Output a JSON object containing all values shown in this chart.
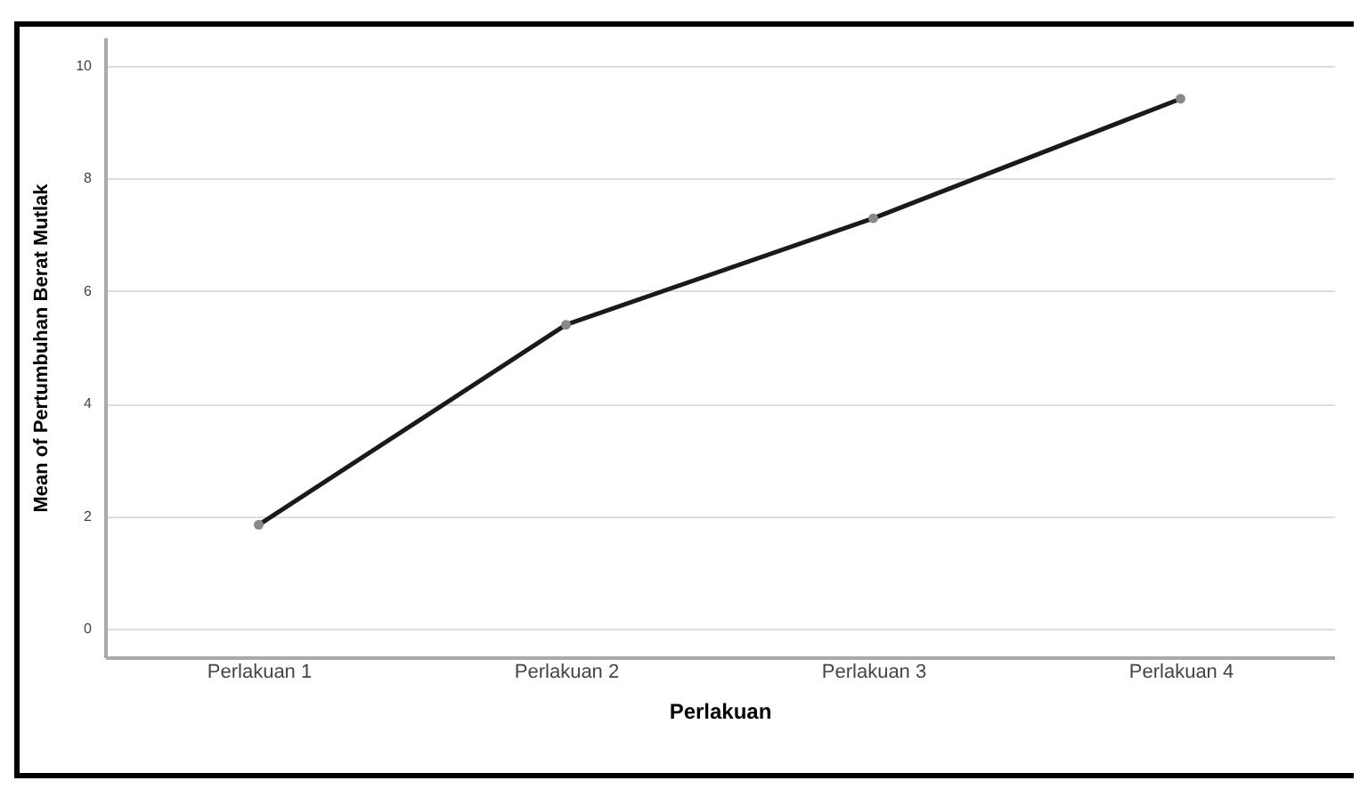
{
  "chart_data": {
    "type": "line",
    "xlabel": "Perlakuan",
    "ylabel": "Mean of Pertumbuhan Berat Mutlak",
    "categories": [
      "Perlakuan 1",
      "Perlakuan 2",
      "Perlakuan 3",
      "Perlakuan 4"
    ],
    "series": [
      {
        "color": "#1a1a1a",
        "values": [
          1.85,
          5.4,
          7.29,
          9.41
        ]
      }
    ],
    "ylim": [
      -0.5,
      10.5
    ],
    "yticks": [
      0,
      2,
      4,
      6,
      8,
      10
    ],
    "grid": "y",
    "marker": "circle",
    "line_style": "solid"
  }
}
